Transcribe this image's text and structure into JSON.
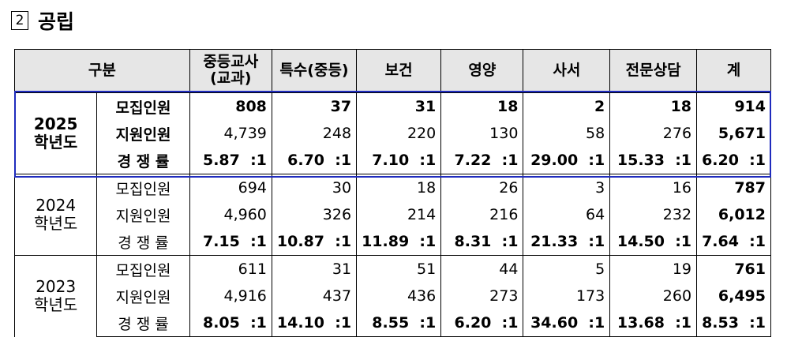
{
  "title": {
    "number": "2",
    "text": "공립"
  },
  "table": {
    "header": {
      "group": "구분",
      "columns": [
        "중등교사\n(교과)",
        "특수(중등)",
        "보건",
        "영양",
        "사서",
        "전문상담",
        "계"
      ]
    },
    "groups": [
      {
        "label": [
          "2025",
          "학년도"
        ],
        "rows": [
          {
            "label": "모집인원",
            "cells": [
              "808",
              "37",
              "31",
              "18",
              "2",
              "18",
              "914"
            ]
          },
          {
            "label": "지원인원",
            "cells": [
              "4,739",
              "248",
              "220",
              "130",
              "58",
              "276",
              "5,671"
            ]
          },
          {
            "label": "경 쟁 률",
            "cells": [
              "5.87  :1",
              "6.70  :1",
              "7.10  :1",
              "7.22  :1",
              "29.00  :1",
              "15.33  :1",
              "6.20  :1"
            ]
          }
        ]
      },
      {
        "label": [
          "2024",
          "학년도"
        ],
        "rows": [
          {
            "label": "모집인원",
            "cells": [
              "694",
              "30",
              "18",
              "26",
              "3",
              "16",
              "787"
            ]
          },
          {
            "label": "지원인원",
            "cells": [
              "4,960",
              "326",
              "214",
              "216",
              "64",
              "232",
              "6,012"
            ]
          },
          {
            "label": "경 쟁 률",
            "cells": [
              "7.15  :1",
              "10.87  :1",
              "11.89  :1",
              "8.31  :1",
              "21.33  :1",
              "14.50  :1",
              "7.64  :1"
            ]
          }
        ]
      },
      {
        "label": [
          "2023",
          "학년도"
        ],
        "rows": [
          {
            "label": "모집인원",
            "cells": [
              "611",
              "31",
              "51",
              "44",
              "5",
              "19",
              "761"
            ]
          },
          {
            "label": "지원인원",
            "cells": [
              "4,916",
              "437",
              "436",
              "273",
              "173",
              "260",
              "6,495"
            ]
          },
          {
            "label": "경 쟁 률",
            "cells": [
              "8.05  :1",
              "14.10  :1",
              "8.55  :1",
              "6.20  :1",
              "34.60  :1",
              "13.68  :1",
              "8.53  :1"
            ]
          }
        ]
      }
    ]
  }
}
